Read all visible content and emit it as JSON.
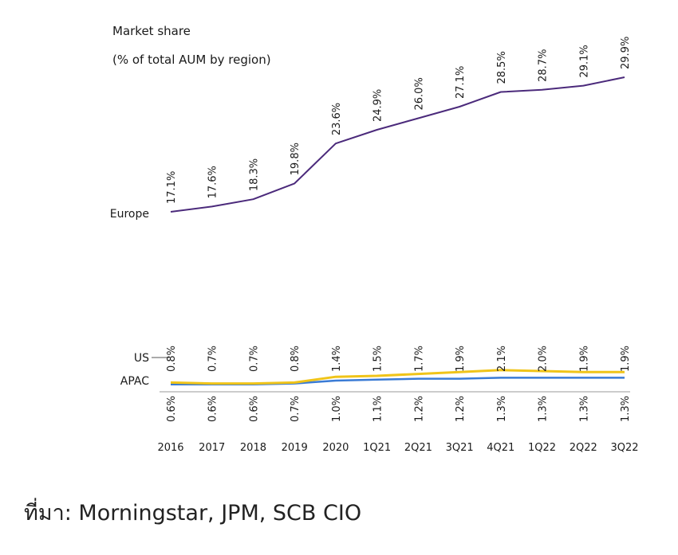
{
  "chart_data": {
    "type": "line",
    "title": "Market share",
    "subtitle": "(% of total AUM by region)",
    "categories": [
      "2016",
      "2017",
      "2018",
      "2019",
      "2020",
      "1Q21",
      "2Q21",
      "3Q21",
      "4Q21",
      "1Q22",
      "2Q22",
      "3Q22"
    ],
    "series": [
      {
        "name": "Europe",
        "color": "#4b2a7b",
        "values": [
          17.1,
          17.6,
          18.3,
          19.8,
          23.6,
          24.9,
          26.0,
          27.1,
          28.5,
          28.7,
          29.1,
          29.9
        ],
        "labels": [
          "17.1%",
          "17.6%",
          "18.3%",
          "19.8%",
          "23.6%",
          "24.9%",
          "26.0%",
          "27.1%",
          "28.5%",
          "28.7%",
          "29.1%",
          "29.9%"
        ]
      },
      {
        "name": "US",
        "color": "#f0c419",
        "values": [
          0.8,
          0.7,
          0.7,
          0.8,
          1.4,
          1.5,
          1.7,
          1.9,
          2.1,
          2.0,
          1.9,
          1.9
        ],
        "labels": [
          "0.8%",
          "0.7%",
          "0.7%",
          "0.8%",
          "1.4%",
          "1.5%",
          "1.7%",
          "1.9%",
          "2.1%",
          "2.0%",
          "1.9%",
          "1.9%"
        ]
      },
      {
        "name": "APAC",
        "color": "#3a7bd5",
        "values": [
          0.6,
          0.6,
          0.6,
          0.7,
          1.0,
          1.1,
          1.2,
          1.2,
          1.3,
          1.3,
          1.3,
          1.3
        ],
        "labels": [
          "0.6%",
          "0.6%",
          "0.6%",
          "0.7%",
          "1.0%",
          "1.1%",
          "1.2%",
          "1.2%",
          "1.3%",
          "1.3%",
          "1.3%",
          "1.3%"
        ]
      }
    ],
    "grid": false,
    "legend": "inline-left"
  },
  "source": "ที่มา: Morningstar, JPM, SCB CIO"
}
